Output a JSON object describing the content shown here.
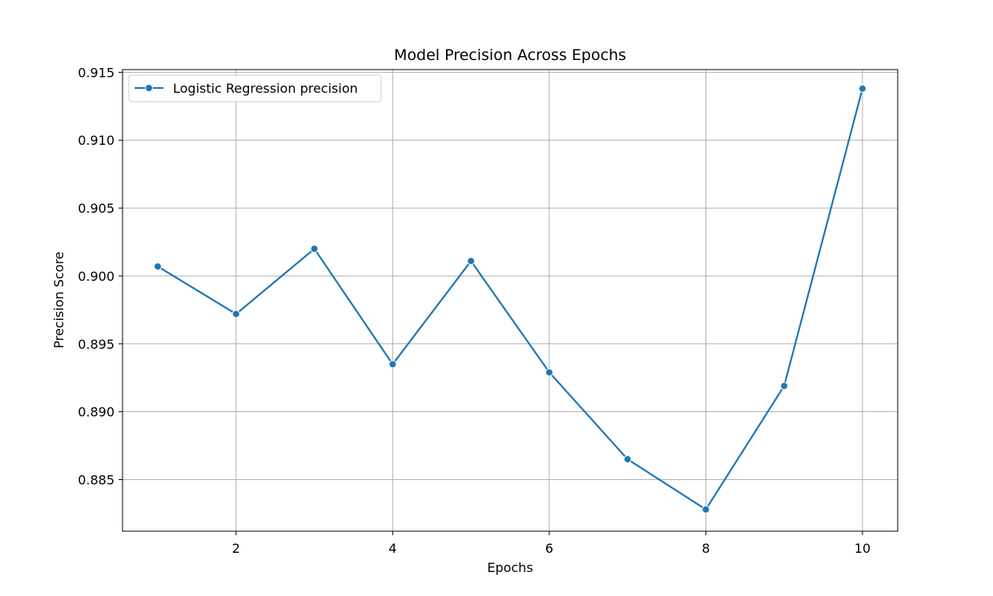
{
  "chart_data": {
    "type": "line",
    "title": "Model Precision Across Epochs",
    "xlabel": "Epochs",
    "ylabel": "Precision Score",
    "xlim": [
      0.55,
      10.45
    ],
    "ylim": [
      0.8812,
      0.9152
    ],
    "xticks": [
      2,
      4,
      6,
      8,
      10
    ],
    "yticks": [
      0.885,
      0.89,
      0.895,
      0.9,
      0.905,
      0.91,
      0.915
    ],
    "ytick_labels": [
      "0.885",
      "0.890",
      "0.895",
      "0.900",
      "0.905",
      "0.910",
      "0.915"
    ],
    "grid": true,
    "legend_position": "top-left",
    "series": [
      {
        "name": "Logistic Regression precision",
        "color": "#1f77b4",
        "marker": "circle",
        "x": [
          1,
          2,
          3,
          4,
          5,
          6,
          7,
          8,
          9,
          10
        ],
        "y": [
          0.9007,
          0.8972,
          0.902,
          0.8935,
          0.9011,
          0.8929,
          0.8865,
          0.8828,
          0.8919,
          0.9138
        ]
      }
    ]
  }
}
